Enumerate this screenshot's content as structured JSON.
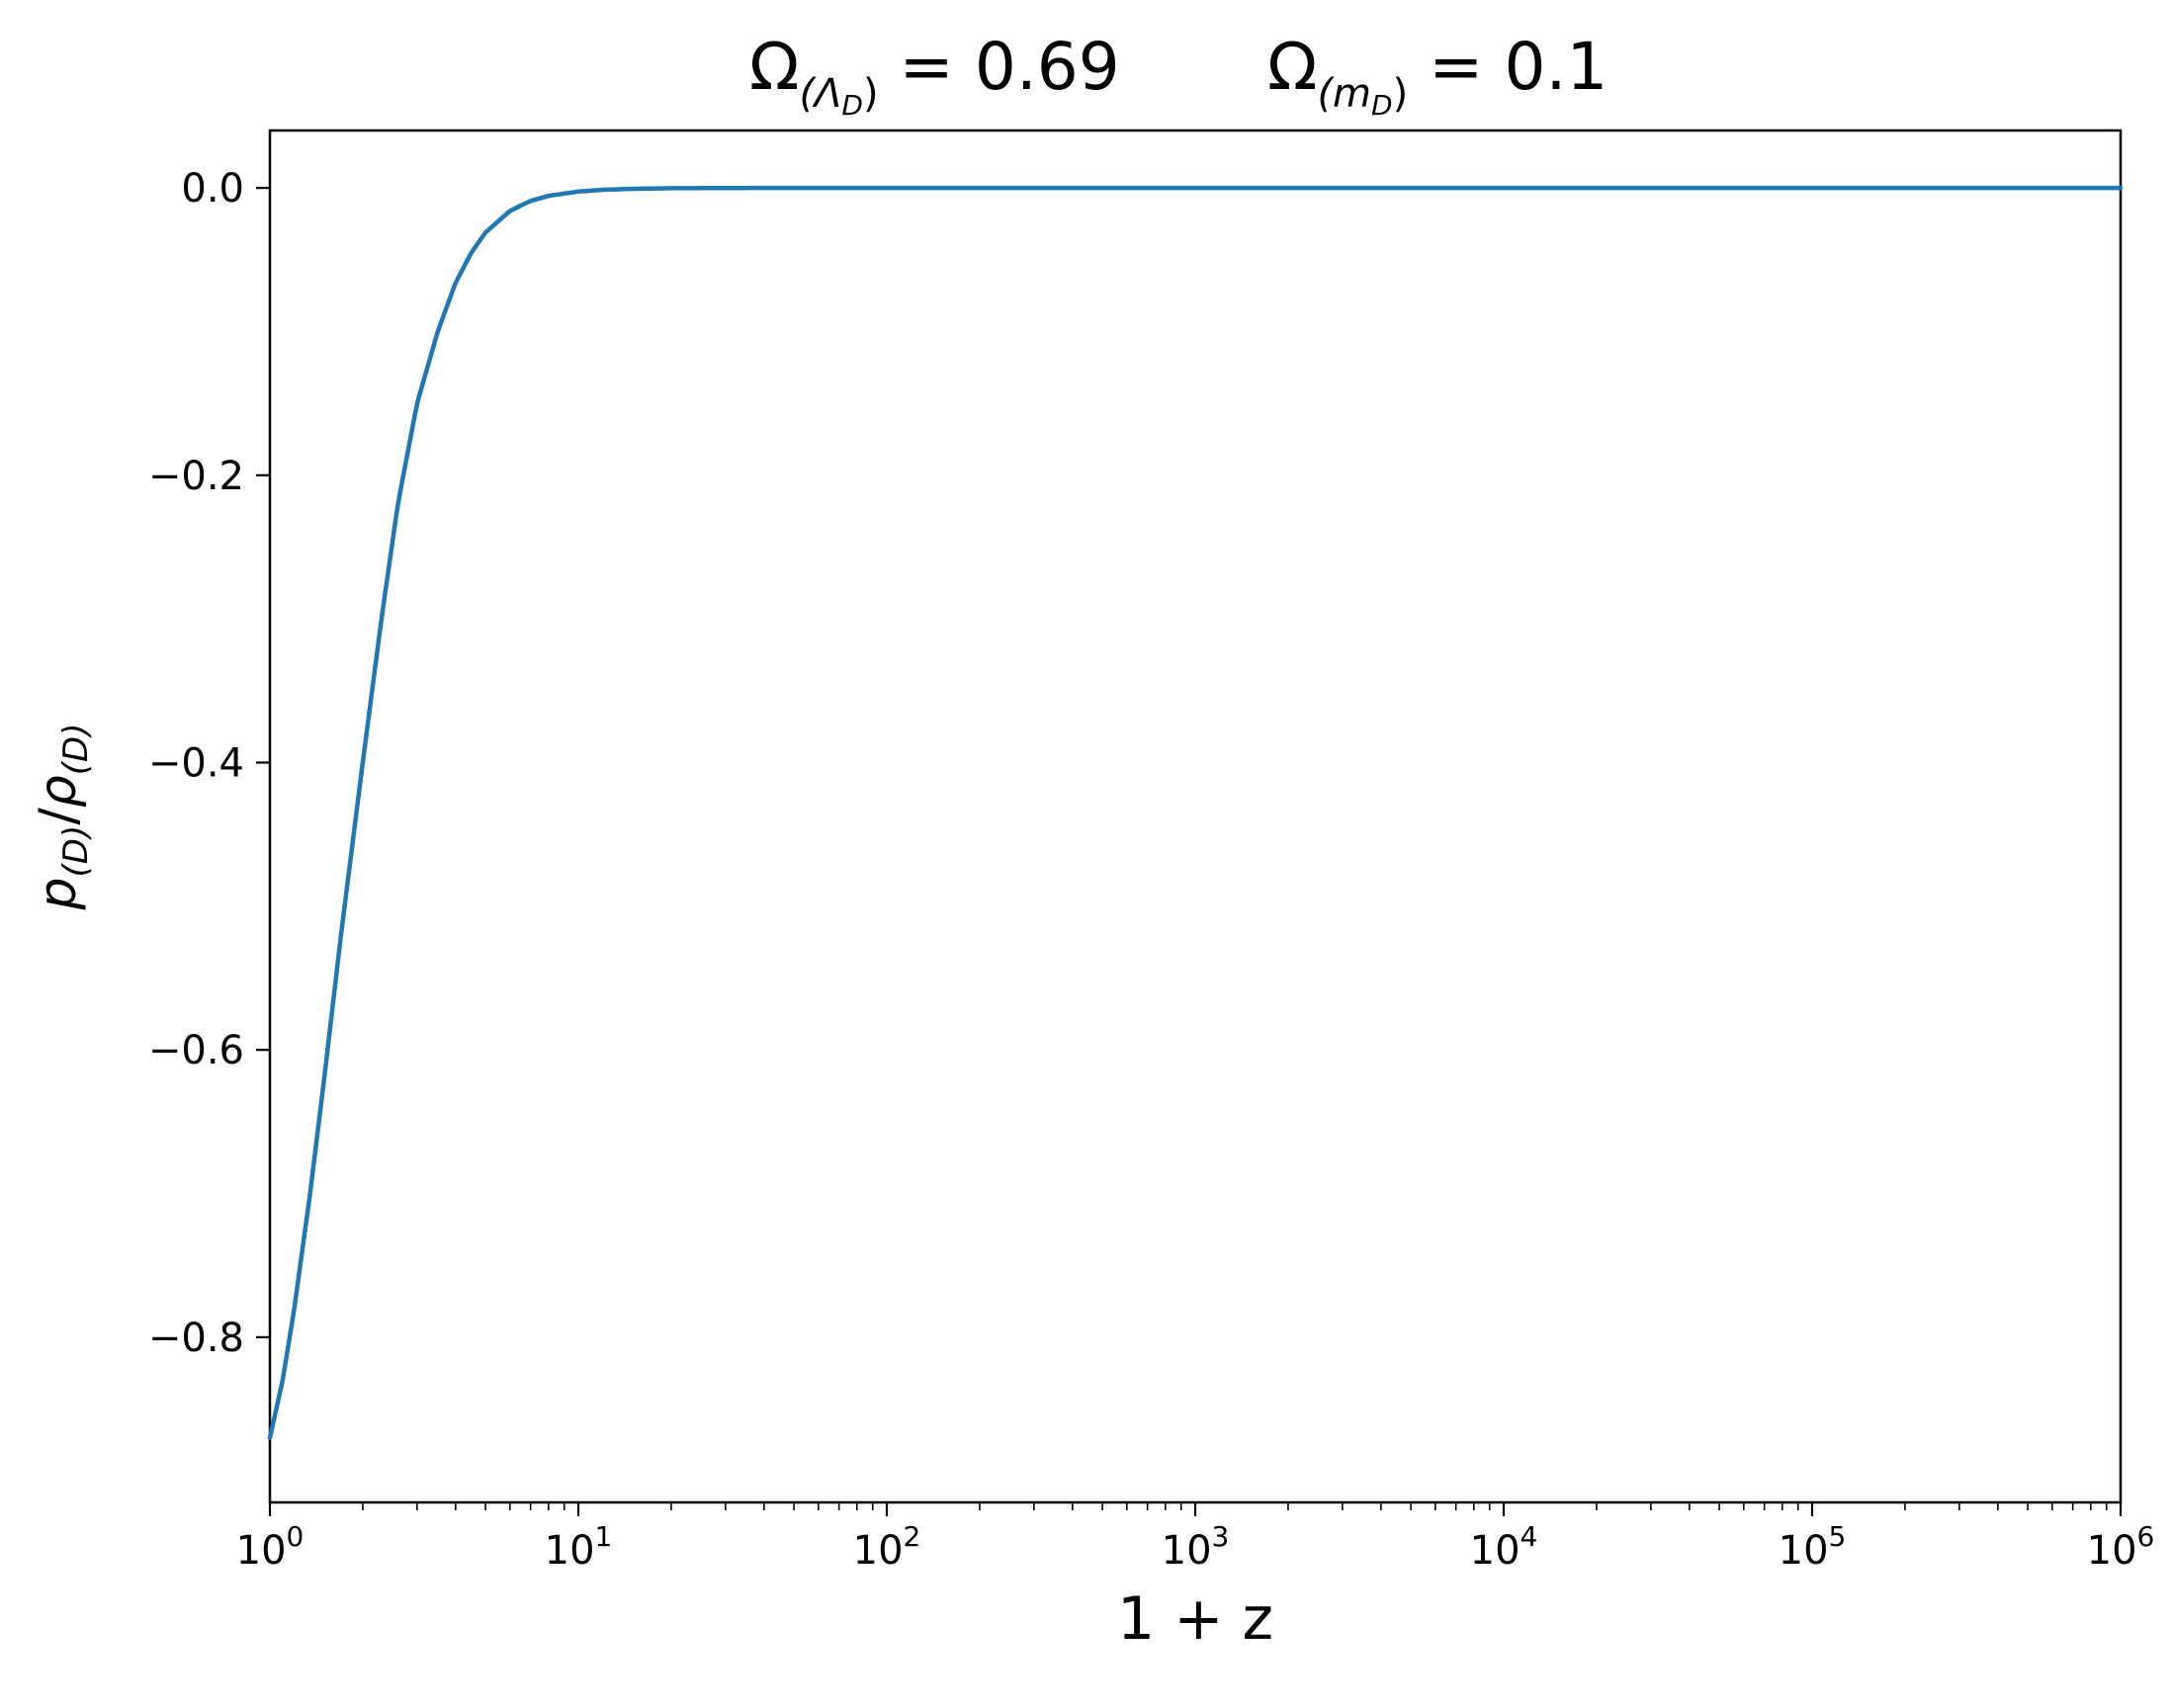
{
  "chart_data": {
    "type": "line",
    "title": {
      "left": {
        "symbol": "Ω",
        "subscript": "(Λ",
        "subsub": "D",
        "close": ")",
        "value": " = 0.69"
      },
      "right": {
        "symbol": "Ω",
        "subscript": "(m",
        "subsub": "D",
        "close": ")",
        "value": " = 0.1"
      }
    },
    "xlabel": "1 + z",
    "ylabel": {
      "p": "p",
      "p_sub": "(D)",
      "slash": "/",
      "rho": "ρ",
      "rho_sub": "(D)"
    },
    "x_scale": "log",
    "xlim": [
      1,
      1000000
    ],
    "ylim": [
      -0.915,
      0.04
    ],
    "x_ticks": [
      {
        "base": "10",
        "exp": "0",
        "value": 1
      },
      {
        "base": "10",
        "exp": "1",
        "value": 10
      },
      {
        "base": "10",
        "exp": "2",
        "value": 100
      },
      {
        "base": "10",
        "exp": "3",
        "value": 1000
      },
      {
        "base": "10",
        "exp": "4",
        "value": 10000
      },
      {
        "base": "10",
        "exp": "5",
        "value": 100000
      },
      {
        "base": "10",
        "exp": "6",
        "value": 1000000
      }
    ],
    "y_ticks": [
      {
        "label": "0.0",
        "value": 0.0
      },
      {
        "label": "−0.2",
        "value": -0.2
      },
      {
        "label": "−0.4",
        "value": -0.4
      },
      {
        "label": "−0.6",
        "value": -0.6
      },
      {
        "label": "−0.8",
        "value": -0.8
      }
    ],
    "grid": false,
    "series": [
      {
        "color": "#1f77b4",
        "x": [
          1,
          1.1,
          1.2,
          1.35,
          1.5,
          1.7,
          2.0,
          2.3,
          2.6,
          3.0,
          3.5,
          4.0,
          4.5,
          5.0,
          6.0,
          7.0,
          8.0,
          10,
          12,
          15,
          20,
          30,
          50,
          100,
          1000,
          10000,
          100000,
          1000000
        ],
        "y": [
          -0.87,
          -0.83,
          -0.78,
          -0.7,
          -0.62,
          -0.52,
          -0.4,
          -0.3,
          -0.22,
          -0.15,
          -0.1,
          -0.066,
          -0.045,
          -0.031,
          -0.016,
          -0.009,
          -0.0055,
          -0.0025,
          -0.0013,
          -0.0006,
          -0.0002,
          -5e-05,
          0,
          0,
          0,
          0,
          0,
          0
        ]
      }
    ]
  }
}
